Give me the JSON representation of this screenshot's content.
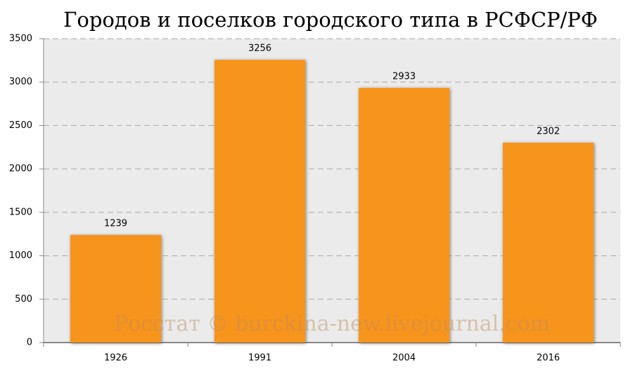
{
  "chart_data": {
    "type": "bar",
    "title": "Городов и поселков городского типа в РСФСР/РФ",
    "watermark": "Росстат © burckina-new.livejournal.com",
    "categories": [
      "1926",
      "1991",
      "2004",
      "2016"
    ],
    "values": [
      1239,
      3256,
      2933,
      2302
    ],
    "color": "#f7941d",
    "ylim": [
      0,
      3500
    ],
    "yticks": [
      0,
      500,
      1000,
      1500,
      2000,
      2500,
      3000,
      3500
    ],
    "grid": true
  }
}
